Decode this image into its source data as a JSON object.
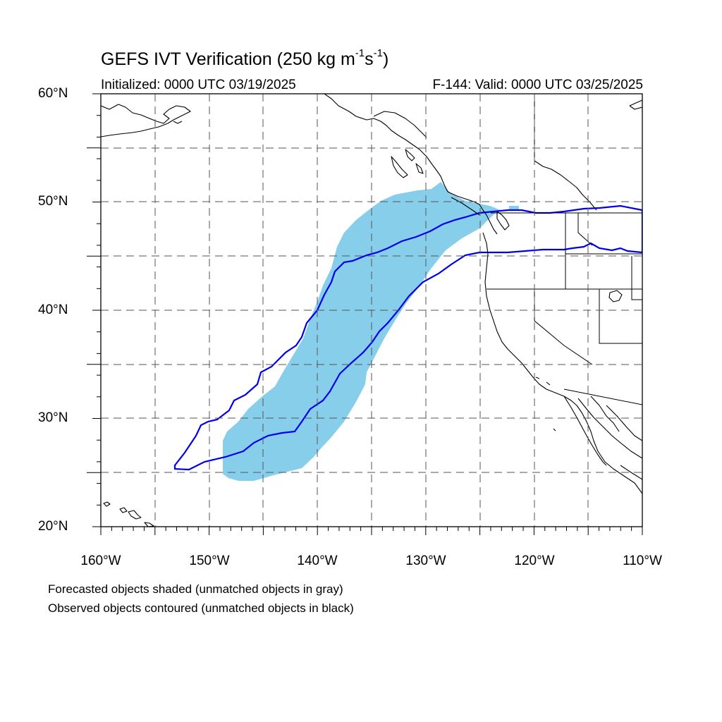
{
  "title": {
    "main": "GEFS IVT Verification (250 kg m",
    "sup1": "-1",
    "mid": "s",
    "sup2": "-1",
    "close": ")"
  },
  "subtitle": {
    "initialized": "Initialized: 0000 UTC 03/19/2025",
    "valid": "F-144: Valid: 0000 UTC 03/25/2025"
  },
  "map": {
    "projection": "cylindrical-equidistant",
    "lon_range": [
      -160,
      -110
    ],
    "lat_range": [
      20,
      60
    ],
    "grid_spacing_deg": 5,
    "grid_style": "dashed",
    "lat_labels": [
      "60°N",
      "50°N",
      "40°N",
      "30°N",
      "20°N"
    ],
    "lon_labels": [
      "160°W",
      "150°W",
      "140°W",
      "130°W",
      "120°W",
      "110°W"
    ],
    "colors": {
      "forecast_fill": "#87ceeb",
      "observed_contour": "#0000ee",
      "coastline": "#000000",
      "grid": "#555555"
    }
  },
  "legend": {
    "line1": "Forecasted objects shaded (unmatched objects in gray)",
    "line2": "Observed objects contoured (unmatched objects in black)"
  }
}
